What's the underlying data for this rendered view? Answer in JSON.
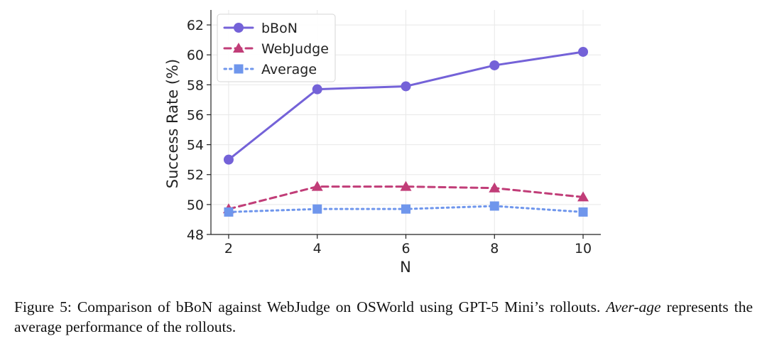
{
  "chart_data": {
    "type": "line",
    "x": [
      2,
      4,
      6,
      8,
      10
    ],
    "xlabel": "N",
    "ylabel": "Success Rate (%)",
    "xlim": [
      1.6,
      10.4
    ],
    "ylim": [
      48,
      63
    ],
    "xticks": [
      2,
      4,
      6,
      8,
      10
    ],
    "yticks": [
      48,
      50,
      52,
      54,
      56,
      58,
      60,
      62
    ],
    "grid": true,
    "legend_position": "top-left",
    "series": [
      {
        "name": "bBoN",
        "values": [
          53.0,
          57.7,
          57.9,
          59.3,
          60.2
        ],
        "color": "#7462d8",
        "marker": "circle",
        "line": "solid"
      },
      {
        "name": "WebJudge",
        "values": [
          49.7,
          51.2,
          51.2,
          51.1,
          50.5
        ],
        "color": "#c13d78",
        "marker": "triangle",
        "line": "dashed"
      },
      {
        "name": "Average",
        "values": [
          49.5,
          49.7,
          49.7,
          49.9,
          49.5
        ],
        "color": "#6f96ec",
        "marker": "square",
        "line": "dotted"
      }
    ]
  },
  "caption": {
    "prefix": "Figure 5: Comparison of bBoN against WebJudge on OSWorld using GPT-5 Mini’s rollouts. ",
    "italic": "Aver-age",
    "suffix": " represents the average performance of the rollouts."
  }
}
